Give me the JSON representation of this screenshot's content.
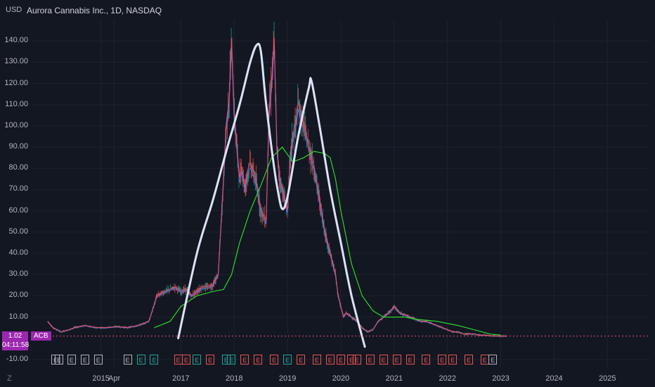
{
  "header": {
    "currency": "USD",
    "title": "Aurora Cannabis Inc., 1D, NASDAQ"
  },
  "price_tag": {
    "price": "1.02",
    "countdown": "04:11:58",
    "ticker": "ACB",
    "color": "#9c27b0"
  },
  "colors": {
    "background": "#131722",
    "grid": "#1e222d",
    "up": "#26a69a",
    "down": "#ef5350",
    "ma_green": "#2bd62b",
    "ma_blue": "#5b6ee1",
    "ma_red": "#e84f6b",
    "drawing": "#dbe3f5",
    "earnings_up": "#26a69a",
    "earnings_down": "#ef5350",
    "earnings_neutral": "#b2b5be"
  },
  "watermark": "Z",
  "chart_data": {
    "type": "line",
    "y_axis_labels": [
      "140.00",
      "130.00",
      "120.00",
      "110.00",
      "100.00",
      "90.00",
      "80.00",
      "70.00",
      "60.00",
      "50.00",
      "40.00",
      "30.00",
      "20.00",
      "10.00",
      "-10.00"
    ],
    "x_axis_labels": [
      "2015",
      "Apr",
      "2017",
      "2018",
      "2019",
      "2020",
      "2021",
      "2022",
      "2023",
      "2024",
      "2025"
    ],
    "ylim": [
      -14,
      150
    ],
    "x_label_positions": [
      2015.5,
      2015.75,
      2017.0,
      2018.0,
      2019.0,
      2020.0,
      2021.0,
      2022.0,
      2023.0,
      2024.0,
      2025.0
    ],
    "xlim": [
      2014.2,
      2025.8
    ],
    "series": [
      {
        "key": "price",
        "x": [
          2014.5,
          2014.6,
          2014.75,
          2014.9,
          2015.0,
          2015.2,
          2015.4,
          2015.6,
          2015.8,
          2016.0,
          2016.2,
          2016.4,
          2016.55,
          2016.7,
          2016.8,
          2016.9,
          2017.0,
          2017.1,
          2017.2,
          2017.3,
          2017.4,
          2017.5,
          2017.6,
          2017.7,
          2017.8,
          2017.85,
          2017.9,
          2017.95,
          2018.0,
          2018.05,
          2018.1,
          2018.15,
          2018.2,
          2018.25,
          2018.3,
          2018.4,
          2018.5,
          2018.6,
          2018.65,
          2018.7,
          2018.75,
          2018.8,
          2018.85,
          2018.9,
          2019.0,
          2019.05,
          2019.1,
          2019.15,
          2019.2,
          2019.3,
          2019.4,
          2019.5,
          2019.6,
          2019.7,
          2019.8,
          2019.9,
          2019.95,
          2020.0,
          2020.05,
          2020.1,
          2020.2,
          2020.3,
          2020.4,
          2020.5,
          2020.6,
          2020.7,
          2020.8,
          2020.9,
          2021.0,
          2021.1,
          2021.2,
          2021.3,
          2021.4,
          2021.5,
          2021.6,
          2021.7,
          2021.8,
          2021.9,
          2022.0,
          2022.1,
          2022.2,
          2022.3,
          2022.4,
          2022.5,
          2022.6,
          2022.7,
          2022.8,
          2022.9,
          2023.0,
          2023.1
        ],
        "y": [
          8,
          5,
          3,
          4,
          5,
          6,
          5,
          5,
          5.5,
          5,
          6,
          8,
          20,
          22,
          23,
          24,
          22,
          23,
          20,
          22,
          24,
          24,
          25,
          30,
          75,
          100,
          110,
          140,
          105,
          90,
          75,
          80,
          70,
          78,
          82,
          75,
          60,
          55,
          105,
          120,
          140,
          90,
          75,
          70,
          60,
          85,
          95,
          100,
          110,
          100,
          90,
          80,
          65,
          50,
          40,
          30,
          20,
          15,
          10,
          12,
          10,
          8,
          5,
          3,
          4,
          8,
          10,
          12,
          15,
          12,
          11,
          10,
          9,
          8,
          8,
          7,
          6,
          5,
          4,
          3,
          3,
          2,
          2,
          2,
          1.5,
          1.5,
          1.2,
          1.1,
          1.02,
          1.02
        ]
      },
      {
        "key": "ma_long",
        "x": [
          2016.5,
          2016.8,
          2017.0,
          2017.3,
          2017.6,
          2017.8,
          2017.95,
          2018.1,
          2018.3,
          2018.5,
          2018.7,
          2018.9,
          2019.1,
          2019.3,
          2019.5,
          2019.7,
          2019.8,
          2019.9,
          2020.0,
          2020.2,
          2020.4,
          2020.6,
          2020.8,
          2021.0,
          2021.2,
          2021.4,
          2021.6,
          2021.8,
          2022.0,
          2022.2,
          2022.5,
          2022.8,
          2023.0
        ],
        "y": [
          5,
          8,
          15,
          20,
          22,
          23,
          30,
          45,
          60,
          72,
          85,
          90,
          83,
          85,
          88,
          87,
          85,
          75,
          60,
          35,
          20,
          13,
          10,
          10,
          10,
          9,
          8.5,
          8,
          7,
          6,
          4,
          2,
          1.5
        ]
      },
      {
        "key": "drawing",
        "x": [
          2016.95,
          2017.3,
          2017.6,
          2017.85,
          2018.1,
          2018.3,
          2018.42,
          2018.5,
          2018.6,
          2018.8,
          2018.95,
          2019.2,
          2019.4,
          2019.45,
          2019.6,
          2019.8,
          2020.0,
          2020.2,
          2020.45
        ],
        "y": [
          0,
          40,
          65,
          88,
          110,
          130,
          138,
          135,
          110,
          72,
          62,
          95,
          118,
          121,
          100,
          70,
          45,
          20,
          -4
        ]
      }
    ]
  },
  "earnings_markers": [
    {
      "x": 2014.65,
      "label": "E",
      "status": "neutral"
    },
    {
      "x": 2014.72,
      "label": "E",
      "status": "neutral"
    },
    {
      "x": 2014.95,
      "label": "E",
      "status": "neutral"
    },
    {
      "x": 2015.2,
      "label": "E",
      "status": "neutral"
    },
    {
      "x": 2015.45,
      "label": "E",
      "status": "neutral"
    },
    {
      "x": 2016.0,
      "label": "E",
      "status": "neutral"
    },
    {
      "x": 2016.25,
      "label": "E",
      "status": "up"
    },
    {
      "x": 2016.5,
      "label": "E",
      "status": "up"
    },
    {
      "x": 2016.95,
      "label": "E",
      "status": "down"
    },
    {
      "x": 2017.1,
      "label": "E",
      "status": "down"
    },
    {
      "x": 2017.3,
      "label": "E",
      "status": "up"
    },
    {
      "x": 2017.55,
      "label": "E",
      "status": "down"
    },
    {
      "x": 2017.85,
      "label": "E",
      "status": "up"
    },
    {
      "x": 2017.95,
      "label": "E",
      "status": "up"
    },
    {
      "x": 2018.2,
      "label": "E",
      "status": "down"
    },
    {
      "x": 2018.45,
      "label": "E",
      "status": "down"
    },
    {
      "x": 2018.75,
      "label": "E",
      "status": "down"
    },
    {
      "x": 2019.0,
      "label": "E",
      "status": "up"
    },
    {
      "x": 2019.25,
      "label": "E",
      "status": "down"
    },
    {
      "x": 2019.55,
      "label": "E",
      "status": "down"
    },
    {
      "x": 2019.8,
      "label": "E",
      "status": "down"
    },
    {
      "x": 2020.0,
      "label": "E",
      "status": "down"
    },
    {
      "x": 2020.2,
      "label": "E",
      "status": "down"
    },
    {
      "x": 2020.3,
      "label": "E",
      "status": "down"
    },
    {
      "x": 2020.55,
      "label": "E",
      "status": "down"
    },
    {
      "x": 2020.8,
      "label": "E",
      "status": "down"
    },
    {
      "x": 2021.05,
      "label": "E",
      "status": "down"
    },
    {
      "x": 2021.3,
      "label": "E",
      "status": "down"
    },
    {
      "x": 2021.6,
      "label": "E",
      "status": "down"
    },
    {
      "x": 2021.9,
      "label": "E",
      "status": "down"
    },
    {
      "x": 2022.1,
      "label": "E",
      "status": "down"
    },
    {
      "x": 2022.4,
      "label": "E",
      "status": "down"
    },
    {
      "x": 2022.7,
      "label": "E",
      "status": "down"
    },
    {
      "x": 2022.85,
      "label": "E",
      "status": "neutral"
    }
  ]
}
